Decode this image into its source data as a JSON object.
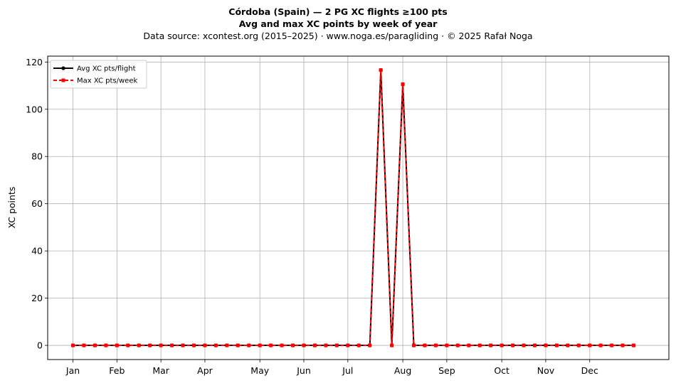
{
  "header": {
    "title": "Córdoba (Spain)  —  2 PG XC flights ≥100 pts",
    "subtitle": "Avg and max XC points by week of year",
    "source": "Data source: xcontest.org (2015–2025)  ·  www.noga.es/paragliding  ·  © 2025 Rafał Noga"
  },
  "chart_data": {
    "type": "line",
    "title": "Córdoba (Spain)  —  2 PG XC flights ≥100 pts",
    "subtitle": "Avg and max XC points by week of year",
    "xlabel": "",
    "ylabel": "XC points",
    "x": [
      1,
      2,
      3,
      4,
      5,
      6,
      7,
      8,
      9,
      10,
      11,
      12,
      13,
      14,
      15,
      16,
      17,
      18,
      19,
      20,
      21,
      22,
      23,
      24,
      25,
      26,
      27,
      28,
      29,
      30,
      31,
      32,
      33,
      34,
      35,
      36,
      37,
      38,
      39,
      40,
      41,
      42,
      43,
      44,
      45,
      46,
      47,
      48,
      49,
      50,
      51,
      52
    ],
    "xlim": [
      -1.3,
      55.2
    ],
    "ylim": [
      -6,
      122.5
    ],
    "x_ticks": [
      {
        "label": "Jan",
        "x": 1
      },
      {
        "label": "Feb",
        "x": 5
      },
      {
        "label": "Mar",
        "x": 9
      },
      {
        "label": "Apr",
        "x": 13
      },
      {
        "label": "May",
        "x": 18
      },
      {
        "label": "Jun",
        "x": 22
      },
      {
        "label": "Jul",
        "x": 26
      },
      {
        "label": "Aug",
        "x": 31
      },
      {
        "label": "Sep",
        "x": 35
      },
      {
        "label": "Oct",
        "x": 40
      },
      {
        "label": "Nov",
        "x": 44
      },
      {
        "label": "Dec",
        "x": 48
      }
    ],
    "y_ticks": [
      0,
      20,
      40,
      60,
      80,
      100,
      120
    ],
    "grid": true,
    "legend_position": "top-left",
    "series": [
      {
        "name": "Avg XC pts/flight",
        "color": "#000000",
        "style": "solid",
        "marker": "circle",
        "values": [
          0,
          0,
          0,
          0,
          0,
          0,
          0,
          0,
          0,
          0,
          0,
          0,
          0,
          0,
          0,
          0,
          0,
          0,
          0,
          0,
          0,
          0,
          0,
          0,
          0,
          0,
          0,
          0,
          116.6,
          0,
          110.6,
          0,
          0,
          0,
          0,
          0,
          0,
          0,
          0,
          0,
          0,
          0,
          0,
          0,
          0,
          0,
          0,
          0,
          0,
          0,
          0,
          0
        ]
      },
      {
        "name": "Max XC pts/week",
        "color": "#ff0000",
        "style": "dashed",
        "marker": "square",
        "values": [
          0,
          0,
          0,
          0,
          0,
          0,
          0,
          0,
          0,
          0,
          0,
          0,
          0,
          0,
          0,
          0,
          0,
          0,
          0,
          0,
          0,
          0,
          0,
          0,
          0,
          0,
          0,
          0,
          116.6,
          0,
          110.6,
          0,
          0,
          0,
          0,
          0,
          0,
          0,
          0,
          0,
          0,
          0,
          0,
          0,
          0,
          0,
          0,
          0,
          0,
          0,
          0,
          0
        ]
      }
    ]
  }
}
